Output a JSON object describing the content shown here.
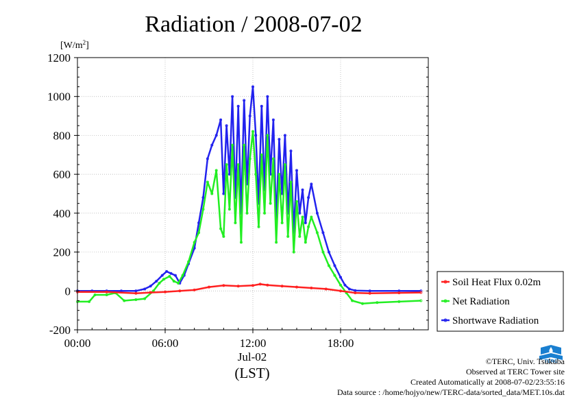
{
  "colors": {
    "soil": "#ff2020",
    "net": "#22ee22",
    "shortwave": "#2222ee",
    "grid": "#aaaaaa",
    "logo": "#1a7fd0"
  },
  "chart_data": {
    "type": "line",
    "title": "Radiation / 2008-07-02",
    "ylabel": "[W/m2]",
    "ylabel_main": "[W/m",
    "ylabel_sup": "2",
    "ylabel_end": "]",
    "xlabel": "(LST)",
    "x_sublabel": "Jul-02",
    "xlim": [
      0,
      24
    ],
    "ylim": [
      -200,
      1200
    ],
    "x_ticks": [
      0,
      6,
      12,
      18
    ],
    "x_tick_labels": [
      "00:00",
      "06:00",
      "12:00",
      "18:00"
    ],
    "y_ticks": [
      -200,
      0,
      200,
      400,
      600,
      800,
      1000,
      1200
    ],
    "y_tick_labels": [
      "-200",
      "0",
      "200",
      "400",
      "600",
      "800",
      "1000",
      "1200"
    ],
    "grid": true,
    "legend_position": "right",
    "series": [
      {
        "name": "Soil Heat Flux 0.02m",
        "color_key": "soil",
        "x": [
          0,
          2,
          4,
          5,
          6,
          7,
          8,
          9,
          10,
          11,
          12,
          12.5,
          13,
          14,
          15,
          16,
          17,
          18,
          19,
          20,
          22,
          23.5
        ],
        "y": [
          -5,
          -5,
          -12,
          -8,
          -5,
          0,
          5,
          20,
          28,
          25,
          28,
          35,
          30,
          25,
          20,
          15,
          10,
          0,
          -10,
          -12,
          -10,
          -8
        ]
      },
      {
        "name": "Net Radiation",
        "color_key": "net",
        "x": [
          0,
          0.8,
          1.2,
          2.0,
          2.6,
          3.2,
          4.0,
          4.6,
          5.2,
          5.6,
          5.9,
          6.3,
          6.6,
          6.9,
          7.2,
          7.6,
          8.0,
          8.3,
          8.6,
          8.9,
          9.2,
          9.5,
          9.8,
          10.0,
          10.2,
          10.4,
          10.6,
          10.8,
          11.0,
          11.2,
          11.4,
          11.6,
          11.8,
          12.0,
          12.2,
          12.4,
          12.6,
          12.8,
          13.0,
          13.2,
          13.4,
          13.6,
          13.8,
          14.0,
          14.2,
          14.4,
          14.6,
          14.8,
          15.0,
          15.2,
          15.4,
          15.6,
          15.8,
          16.0,
          16.4,
          16.8,
          17.2,
          17.6,
          18.0,
          18.4,
          18.8,
          19.5,
          20.5,
          22.0,
          23.5
        ],
        "y": [
          -55,
          -55,
          -20,
          -20,
          -10,
          -50,
          -45,
          -40,
          0,
          40,
          60,
          75,
          50,
          40,
          80,
          150,
          250,
          300,
          420,
          560,
          500,
          620,
          320,
          280,
          650,
          420,
          750,
          350,
          650,
          250,
          750,
          400,
          680,
          820,
          600,
          330,
          700,
          400,
          800,
          450,
          680,
          250,
          600,
          350,
          650,
          280,
          560,
          200,
          460,
          280,
          380,
          250,
          330,
          380,
          300,
          200,
          130,
          80,
          30,
          -10,
          -50,
          -65,
          -60,
          -55,
          -50
        ]
      },
      {
        "name": "Shortwave Radiation",
        "color_key": "shortwave",
        "x": [
          0,
          1,
          2,
          3,
          4,
          4.6,
          5.0,
          5.4,
          5.8,
          6.1,
          6.4,
          6.7,
          7.0,
          7.3,
          7.6,
          8.0,
          8.3,
          8.6,
          8.9,
          9.2,
          9.5,
          9.8,
          10.0,
          10.2,
          10.4,
          10.6,
          10.8,
          11.0,
          11.2,
          11.4,
          11.6,
          11.8,
          12.0,
          12.2,
          12.4,
          12.6,
          12.8,
          13.0,
          13.2,
          13.4,
          13.6,
          13.8,
          14.0,
          14.2,
          14.4,
          14.6,
          14.8,
          15.0,
          15.2,
          15.4,
          15.6,
          15.8,
          16.0,
          16.4,
          16.8,
          17.2,
          17.6,
          18.0,
          18.3,
          18.6,
          19.0,
          20.0,
          22.0,
          23.5
        ],
        "y": [
          0,
          0,
          0,
          0,
          0,
          10,
          25,
          50,
          80,
          100,
          90,
          80,
          40,
          80,
          140,
          220,
          350,
          480,
          680,
          750,
          800,
          880,
          500,
          850,
          600,
          1000,
          480,
          950,
          400,
          980,
          550,
          900,
          1050,
          800,
          450,
          950,
          520,
          1000,
          600,
          880,
          350,
          780,
          500,
          800,
          400,
          720,
          300,
          620,
          400,
          520,
          350,
          480,
          550,
          400,
          300,
          200,
          130,
          70,
          30,
          10,
          2,
          0,
          0,
          0
        ]
      }
    ]
  },
  "credits": {
    "line1": "©TERC, Univ. Tsukuba",
    "line2": "Observed at TERC Tower site",
    "line3": "Created Automatically at 2008-07-02/23:55:16",
    "line4": "Data source : /home/hojyo/new/TERC-data/sorted_data/MET.10s.dat"
  },
  "logo": {
    "label": "TERC"
  }
}
